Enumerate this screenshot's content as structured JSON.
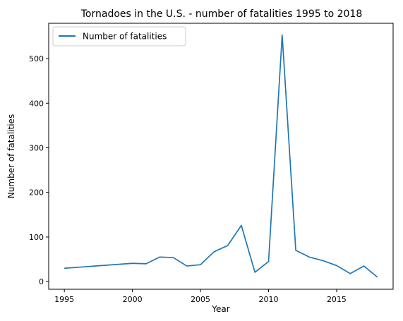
{
  "chart_data": {
    "type": "line",
    "title": "Tornadoes in the U.S. - number of fatalities 1995 to 2018",
    "xlabel": "Year",
    "ylabel": "Number of fatalities",
    "xlim": [
      1993.85,
      2019.15
    ],
    "ylim": [
      -17.1,
      579.1
    ],
    "xticks": [
      1995,
      2000,
      2005,
      2010,
      2015
    ],
    "yticks": [
      0,
      100,
      200,
      300,
      400,
      500
    ],
    "grid": false,
    "legend_position": "top-left",
    "series": [
      {
        "name": "Number of fatalities",
        "color": "#1f77b4",
        "x": [
          1995,
          2000,
          2001,
          2002,
          2003,
          2004,
          2005,
          2006,
          2007,
          2008,
          2009,
          2010,
          2011,
          2012,
          2013,
          2014,
          2015,
          2016,
          2017,
          2018
        ],
        "y": [
          30,
          41,
          40,
          55,
          54,
          35,
          38,
          67,
          81,
          126,
          21,
          45,
          553,
          70,
          55,
          47,
          36,
          18,
          35,
          10
        ]
      }
    ]
  }
}
